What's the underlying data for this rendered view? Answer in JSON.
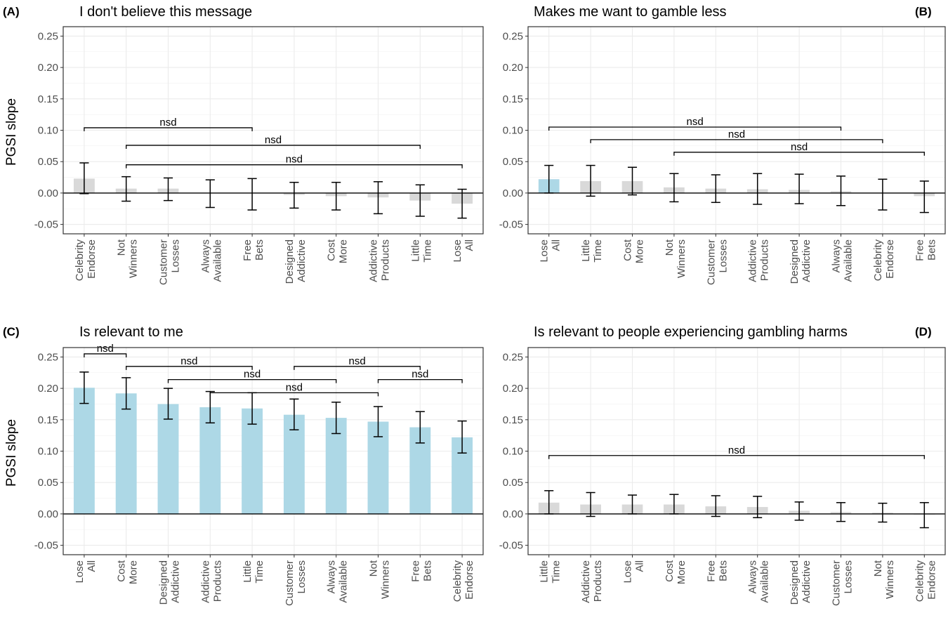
{
  "chart_data": [
    {
      "type": "bar",
      "tag": "(A)",
      "title": "I don't believe this message",
      "ylabel": "PGSI slope",
      "ylim": [
        -0.065,
        0.265
      ],
      "yticks": [
        "0.25",
        "0.20",
        "0.15",
        "0.10",
        "0.05",
        "0.00",
        "-0.05"
      ],
      "categories": [
        [
          "Celebrity",
          "Endorse"
        ],
        [
          "Not",
          "Winners"
        ],
        [
          "Customer",
          "Losses"
        ],
        [
          "Always",
          "Available"
        ],
        [
          "Free",
          "Bets"
        ],
        [
          "Designed",
          "Addictive"
        ],
        [
          "Cost",
          "More"
        ],
        [
          "Addictive",
          "Products"
        ],
        [
          "Little",
          "Time"
        ],
        [
          "Lose",
          "All"
        ]
      ],
      "values": [
        0.023,
        0.007,
        0.007,
        0.0,
        0.0,
        -0.003,
        -0.005,
        -0.007,
        -0.012,
        -0.017
      ],
      "lower": [
        -0.001,
        -0.013,
        -0.012,
        -0.023,
        -0.027,
        -0.024,
        -0.027,
        -0.033,
        -0.037,
        -0.04
      ],
      "upper": [
        0.048,
        0.026,
        0.024,
        0.021,
        0.023,
        0.017,
        0.017,
        0.018,
        0.013,
        0.006
      ],
      "colors": [
        "#d9d9d9",
        "#d9d9d9",
        "#d9d9d9",
        "#d9d9d9",
        "#d9d9d9",
        "#d9d9d9",
        "#d9d9d9",
        "#d9d9d9",
        "#d9d9d9",
        "#d9d9d9"
      ],
      "brackets": [
        {
          "from": 0,
          "to": 4,
          "y": 0.104,
          "label": "nsd"
        },
        {
          "from": 1,
          "to": 8,
          "y": 0.076,
          "label": "nsd"
        },
        {
          "from": 1,
          "to": 9,
          "y": 0.045,
          "label": "nsd"
        }
      ]
    },
    {
      "type": "bar",
      "tag": "(B)",
      "title": "Makes me want to gamble less",
      "ylabel": "",
      "ylim": [
        -0.065,
        0.265
      ],
      "yticks": [
        "0.25",
        "0.20",
        "0.15",
        "0.10",
        "0.05",
        "0.00",
        "-0.05"
      ],
      "categories": [
        [
          "Lose",
          "All"
        ],
        [
          "Little",
          "Time"
        ],
        [
          "Cost",
          "More"
        ],
        [
          "Not",
          "Winners"
        ],
        [
          "Customer",
          "Losses"
        ],
        [
          "Addictive",
          "Products"
        ],
        [
          "Designed",
          "Addictive"
        ],
        [
          "Always",
          "Available"
        ],
        [
          "Celebrity",
          "Endorse"
        ],
        [
          "Free",
          "Bets"
        ]
      ],
      "values": [
        0.022,
        0.019,
        0.019,
        0.009,
        0.007,
        0.006,
        0.005,
        0.003,
        0.0,
        -0.005
      ],
      "lower": [
        0.0,
        -0.005,
        -0.003,
        -0.014,
        -0.015,
        -0.018,
        -0.017,
        -0.02,
        -0.027,
        -0.031
      ],
      "upper": [
        0.044,
        0.044,
        0.041,
        0.031,
        0.029,
        0.031,
        0.03,
        0.027,
        0.022,
        0.019
      ],
      "colors": [
        "#add8e6",
        "#d9d9d9",
        "#d9d9d9",
        "#d9d9d9",
        "#d9d9d9",
        "#d9d9d9",
        "#d9d9d9",
        "#d9d9d9",
        "#d9d9d9",
        "#d9d9d9"
      ],
      "brackets": [
        {
          "from": 0,
          "to": 7,
          "y": 0.105,
          "label": "nsd"
        },
        {
          "from": 1,
          "to": 8,
          "y": 0.085,
          "label": "nsd"
        },
        {
          "from": 3,
          "to": 9,
          "y": 0.065,
          "label": "nsd"
        }
      ]
    },
    {
      "type": "bar",
      "tag": "(C)",
      "title": "Is relevant to me",
      "ylabel": "PGSI slope",
      "ylim": [
        -0.065,
        0.265
      ],
      "yticks": [
        "0.25",
        "0.20",
        "0.15",
        "0.10",
        "0.05",
        "0.00",
        "-0.05"
      ],
      "categories": [
        [
          "Lose",
          "All"
        ],
        [
          "Cost",
          "More"
        ],
        [
          "Designed",
          "Addictive"
        ],
        [
          "Addictive",
          "Products"
        ],
        [
          "Little",
          "Time"
        ],
        [
          "Customer",
          "Losses"
        ],
        [
          "Always",
          "Available"
        ],
        [
          "Not",
          "Winners"
        ],
        [
          "Free",
          "Bets"
        ],
        [
          "Celebrity",
          "Endorse"
        ]
      ],
      "values": [
        0.201,
        0.192,
        0.175,
        0.17,
        0.168,
        0.158,
        0.153,
        0.147,
        0.138,
        0.122
      ],
      "lower": [
        0.176,
        0.167,
        0.151,
        0.145,
        0.143,
        0.134,
        0.128,
        0.123,
        0.113,
        0.097
      ],
      "upper": [
        0.226,
        0.217,
        0.2,
        0.195,
        0.193,
        0.183,
        0.178,
        0.171,
        0.163,
        0.148
      ],
      "colors": [
        "#add8e6",
        "#add8e6",
        "#add8e6",
        "#add8e6",
        "#add8e6",
        "#add8e6",
        "#add8e6",
        "#add8e6",
        "#add8e6",
        "#add8e6"
      ],
      "brackets": [
        {
          "from": 0,
          "to": 1,
          "y": 0.255,
          "label": "nsd"
        },
        {
          "from": 1,
          "to": 4,
          "y": 0.235,
          "label": "nsd"
        },
        {
          "from": 5,
          "to": 8,
          "y": 0.235,
          "label": "nsd"
        },
        {
          "from": 2,
          "to": 6,
          "y": 0.214,
          "label": "nsd"
        },
        {
          "from": 7,
          "to": 9,
          "y": 0.214,
          "label": "nsd"
        },
        {
          "from": 3,
          "to": 7,
          "y": 0.193,
          "label": "nsd"
        }
      ]
    },
    {
      "type": "bar",
      "tag": "(D)",
      "title": "Is relevant to people experiencing gambling harms",
      "ylabel": "",
      "ylim": [
        -0.065,
        0.265
      ],
      "yticks": [
        "0.25",
        "0.20",
        "0.15",
        "0.10",
        "0.05",
        "0.00",
        "-0.05"
      ],
      "categories": [
        [
          "Little",
          "Time"
        ],
        [
          "Addictive",
          "Products"
        ],
        [
          "Lose",
          "All"
        ],
        [
          "Cost",
          "More"
        ],
        [
          "Free",
          "Bets"
        ],
        [
          "Always",
          "Available"
        ],
        [
          "Designed",
          "Addictive"
        ],
        [
          "Customer",
          "Losses"
        ],
        [
          "Not",
          "Winners"
        ],
        [
          "Celebrity",
          "Endorse"
        ]
      ],
      "values": [
        0.018,
        0.015,
        0.015,
        0.015,
        0.012,
        0.011,
        0.005,
        0.003,
        0.002,
        -0.001
      ],
      "lower": [
        0.0,
        -0.004,
        0.0,
        0.0,
        -0.004,
        -0.006,
        -0.01,
        -0.012,
        -0.013,
        -0.022
      ],
      "upper": [
        0.037,
        0.034,
        0.03,
        0.031,
        0.029,
        0.028,
        0.019,
        0.018,
        0.017,
        0.018
      ],
      "colors": [
        "#d9d9d9",
        "#d9d9d9",
        "#d9d9d9",
        "#d9d9d9",
        "#d9d9d9",
        "#d9d9d9",
        "#d9d9d9",
        "#d9d9d9",
        "#d9d9d9",
        "#d9d9d9"
      ],
      "brackets": [
        {
          "from": 0,
          "to": 9,
          "y": 0.093,
          "label": "nsd"
        }
      ]
    }
  ]
}
